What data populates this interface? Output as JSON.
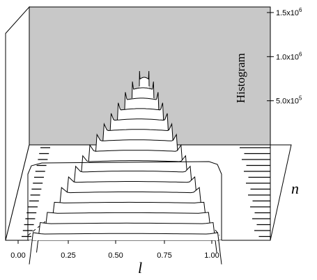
{
  "chart_data": {
    "type": "area",
    "x_axis": {
      "label": "l",
      "range": [
        0.0,
        1.0
      ],
      "ticks": [
        "0.00",
        "0.25",
        "0.50",
        "0.75",
        "1.00"
      ]
    },
    "depth_axis": {
      "label": "n"
    },
    "z_axis": {
      "label": "Histogram",
      "ticks": [
        {
          "value": 500000,
          "mantissa": "5.0x10",
          "exp": "5"
        },
        {
          "value": 1000000,
          "mantissa": "1.0x10",
          "exp": "6"
        },
        {
          "value": 1500000,
          "mantissa": "1.5x10",
          "exp": "6"
        }
      ],
      "range": [
        0,
        1500000
      ]
    },
    "series_count": 16,
    "grid": false,
    "colors": {
      "back_wall": "#c8c8c8",
      "curve_fill": "#ffffff",
      "line": "#000000"
    }
  }
}
